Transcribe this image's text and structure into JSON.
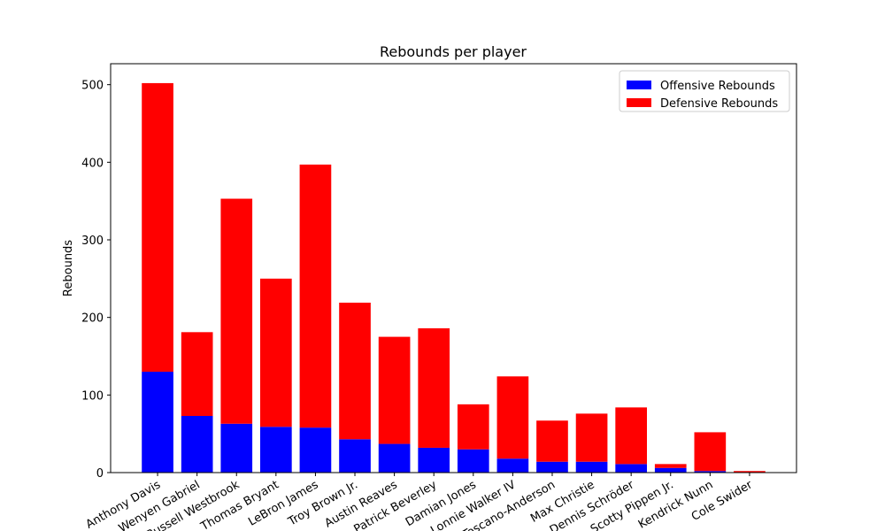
{
  "chart_data": {
    "type": "stacked_bar",
    "title": "Rebounds per player",
    "y_label": "Rebounds",
    "categories": [
      "Anthony Davis",
      "Wenyen Gabriel",
      "Russell Westbrook",
      "Thomas Bryant",
      "LeBron James",
      "Troy Brown Jr.",
      "Austin Reaves",
      "Patrick Beverley",
      "Damian Jones",
      "Lonnie Walker IV",
      "Juan Toscano-Anderson",
      "Max Christie",
      "Dennis Schröder",
      "Scotty Pippen Jr.",
      "Kendrick Nunn",
      "Cole Swider"
    ],
    "series": [
      {
        "name": "Offensive Rebounds",
        "color": "#0000ff",
        "values": [
          130,
          73,
          63,
          59,
          58,
          43,
          37,
          32,
          30,
          18,
          14,
          14,
          11,
          6,
          2,
          0
        ]
      },
      {
        "name": "Defensive Rebounds",
        "color": "#ff0000",
        "values": [
          372,
          108,
          290,
          191,
          339,
          176,
          138,
          154,
          58,
          106,
          53,
          62,
          73,
          5,
          50,
          2
        ]
      }
    ],
    "ylim": [
      0,
      527
    ],
    "yticks": [
      0,
      100,
      200,
      300,
      400,
      500
    ],
    "grid": false,
    "legend": "upper right"
  }
}
